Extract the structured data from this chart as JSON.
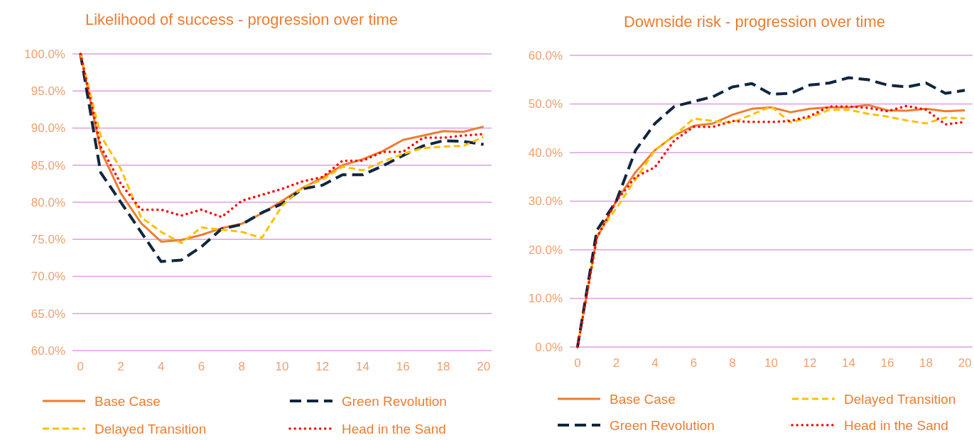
{
  "chart_data": [
    {
      "type": "line",
      "title": "Likelihood  of success - progression over time",
      "x": [
        0,
        1,
        2,
        3,
        4,
        5,
        6,
        7,
        8,
        9,
        10,
        11,
        12,
        13,
        14,
        15,
        16,
        17,
        18,
        19,
        20
      ],
      "xlim": [
        -0.4,
        20.4
      ],
      "xticks": [
        0,
        2,
        4,
        6,
        8,
        10,
        12,
        14,
        16,
        18,
        20
      ],
      "ylim": [
        60,
        100
      ],
      "yticks": [
        {
          "value": 60,
          "label": "60.0%"
        },
        {
          "value": 65,
          "label": "65.0%"
        },
        {
          "value": 70,
          "label": "70.0%"
        },
        {
          "value": 75,
          "label": "75.0%"
        },
        {
          "value": 80,
          "label": "80.0%"
        },
        {
          "value": 85,
          "label": "85.0%"
        },
        {
          "value": 90,
          "label": "90.0%"
        },
        {
          "value": 95,
          "label": "95.0%"
        },
        {
          "value": 100,
          "label": "100.0%"
        }
      ],
      "grid": "y",
      "legend": "bottom",
      "marker": "none",
      "series": [
        {
          "name": "Base Case",
          "color": "#ed7d31",
          "line_style": "solid",
          "values": [
            100,
            87,
            81.2,
            77.2,
            74.7,
            74.9,
            75.6,
            76.5,
            77.1,
            78.5,
            80.2,
            81.9,
            83.3,
            85,
            85.8,
            86.9,
            88.4,
            89,
            89.6,
            89.5,
            90.2
          ]
        },
        {
          "name": "Green Revolution",
          "color": "#10263f",
          "line_style": "dashed",
          "values": [
            100,
            84,
            80,
            76,
            72,
            72.2,
            74,
            76.4,
            77,
            78.6,
            79.8,
            81.8,
            82.3,
            83.7,
            83.7,
            84.9,
            86.3,
            87.6,
            88.3,
            88.2,
            87.8
          ]
        },
        {
          "name": "Delayed Transition",
          "color": "#ffc000",
          "line_style": "dashed",
          "values": [
            100,
            89,
            84.5,
            78,
            76,
            74.5,
            76.6,
            76.3,
            76,
            75.2,
            79.5,
            82,
            83,
            84.8,
            84.3,
            85.5,
            86.5,
            87.3,
            87.5,
            87.6,
            88.8
          ]
        },
        {
          "name": "Head in the Sand",
          "color": "#ff0000",
          "line_style": "dotted",
          "values": [
            100,
            87.5,
            82.5,
            79,
            79,
            78.2,
            79,
            78,
            80.2,
            81,
            81.8,
            82.8,
            83.4,
            85.6,
            85.6,
            86.8,
            86.8,
            88.7,
            88.7,
            89,
            89.2
          ]
        }
      ]
    },
    {
      "type": "line",
      "title": "Downside risk - progression over time",
      "x": [
        0,
        1,
        2,
        3,
        4,
        5,
        6,
        7,
        8,
        9,
        10,
        11,
        12,
        13,
        14,
        15,
        16,
        17,
        18,
        19,
        20
      ],
      "xlim": [
        -0.4,
        20.4
      ],
      "xticks": [
        0,
        2,
        4,
        6,
        8,
        10,
        12,
        14,
        16,
        18,
        20
      ],
      "ylim": [
        0,
        60
      ],
      "yticks": [
        {
          "value": 0,
          "label": "0.0%"
        },
        {
          "value": 10,
          "label": "10.0%"
        },
        {
          "value": 20,
          "label": "20.0%"
        },
        {
          "value": 30,
          "label": "30.0%"
        },
        {
          "value": 40,
          "label": "40.0%"
        },
        {
          "value": 50,
          "label": "50.0%"
        },
        {
          "value": 60,
          "label": "60.0%"
        }
      ],
      "grid": "y",
      "legend": "bottom",
      "marker": "none",
      "series": [
        {
          "name": "Base Case",
          "color": "#ed7d31",
          "line_style": "solid",
          "values": [
            0,
            22.5,
            30,
            36,
            40.5,
            43.5,
            45.5,
            46,
            47.8,
            49,
            49.3,
            48.3,
            49,
            49.3,
            49.3,
            49.8,
            48.7,
            48.6,
            49,
            48.5,
            48.7
          ]
        },
        {
          "name": "Delayed Transition",
          "color": "#ffc000",
          "line_style": "dashed",
          "values": [
            0,
            23,
            28.5,
            34.5,
            40.5,
            43.5,
            47,
            46.5,
            46.2,
            47.8,
            49.5,
            46.2,
            47.2,
            48.8,
            48.8,
            48,
            47.4,
            46.6,
            46,
            47.2,
            47
          ]
        },
        {
          "name": "Green Revolution",
          "color": "#10263f",
          "line_style": "dashed",
          "values": [
            0,
            24,
            30,
            40.5,
            46,
            49.5,
            50.5,
            51.5,
            53.5,
            54.2,
            52,
            52.2,
            53.9,
            54.3,
            55.4,
            55,
            53.9,
            53.5,
            54.3,
            52.2,
            52.8
          ]
        },
        {
          "name": "Head in the Sand",
          "color": "#ff0000",
          "line_style": "dotted",
          "values": [
            0,
            22.5,
            30,
            35,
            37,
            42.5,
            45.3,
            45.3,
            46.5,
            46.3,
            46.3,
            46.5,
            47.5,
            49.5,
            49.5,
            49.2,
            48.5,
            49.6,
            48.8,
            45.8,
            46.3
          ]
        }
      ]
    }
  ]
}
